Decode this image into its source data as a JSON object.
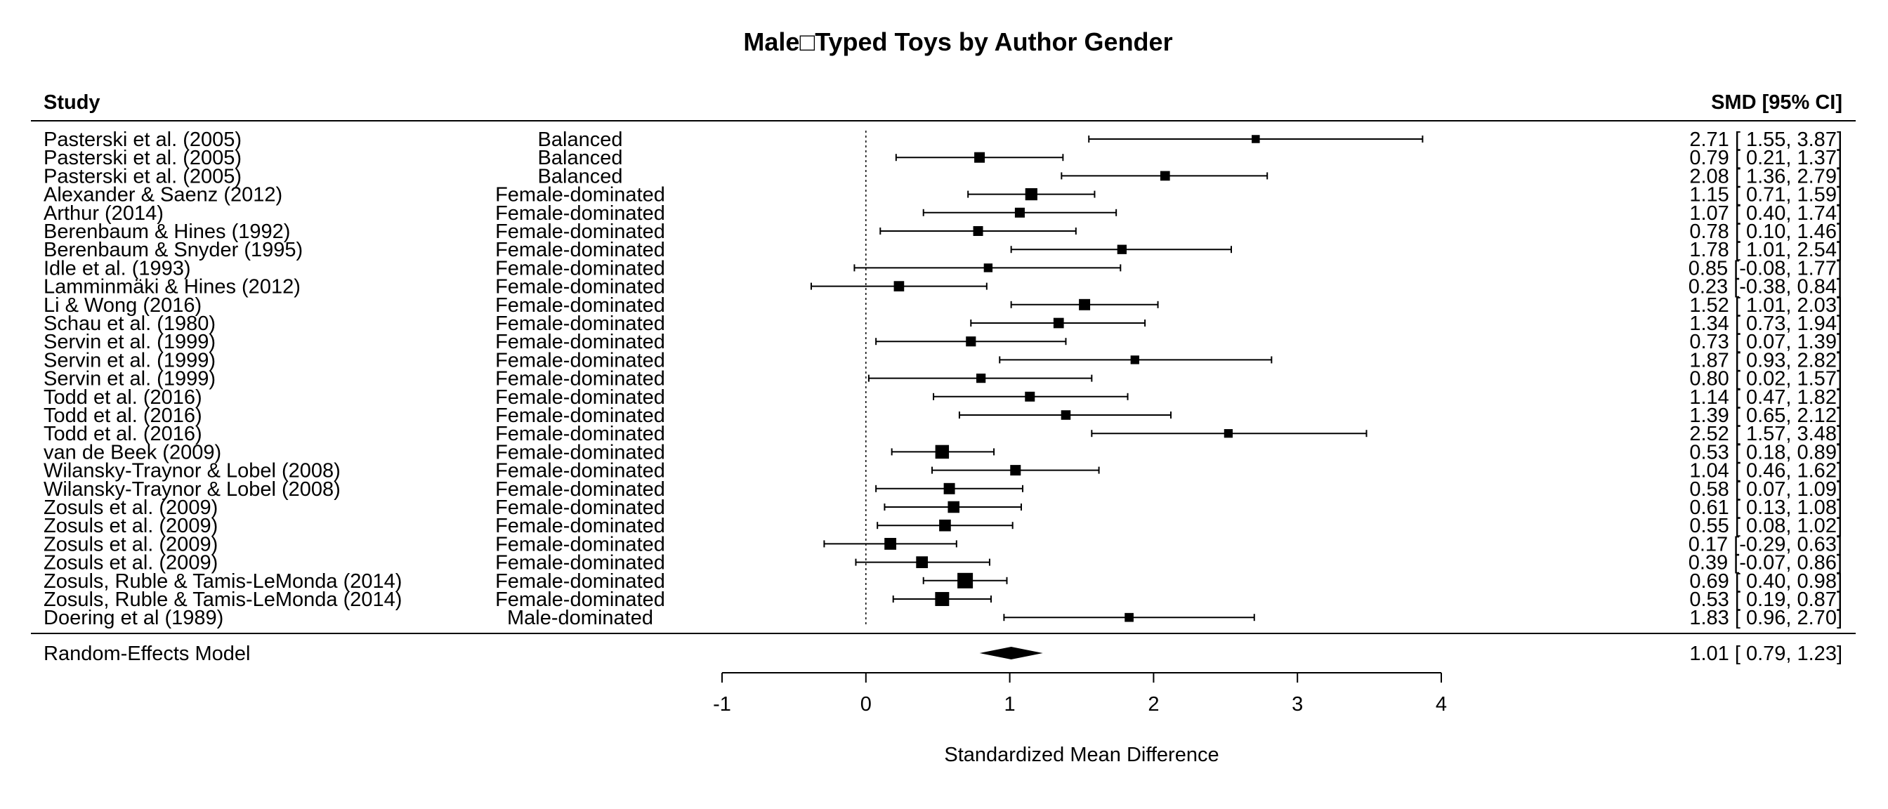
{
  "chart_data": {
    "type": "forest",
    "title": "Male□Typed Toys by Author Gender",
    "header_study": "Study",
    "header_effect": "SMD [95% CI]",
    "xlabel": "Standardized Mean Difference",
    "xlim": [
      -1,
      4
    ],
    "xticks": [
      "-1",
      "0",
      "1",
      "2",
      "3",
      "4"
    ],
    "reference_line": 0,
    "rows": [
      {
        "study": "Pasterski et al. (2005)",
        "group": "Balanced",
        "est": 2.71,
        "lo": 1.55,
        "hi": 3.87,
        "label": "2.71 [ 1.55, 3.87]"
      },
      {
        "study": "Pasterski et al. (2005)",
        "group": "Balanced",
        "est": 0.79,
        "lo": 0.21,
        "hi": 1.37,
        "label": "0.79 [ 0.21, 1.37]"
      },
      {
        "study": "Pasterski et al. (2005)",
        "group": "Balanced",
        "est": 2.08,
        "lo": 1.36,
        "hi": 2.79,
        "label": "2.08 [ 1.36, 2.79]"
      },
      {
        "study": "Alexander & Saenz (2012)",
        "group": "Female-dominated",
        "est": 1.15,
        "lo": 0.71,
        "hi": 1.59,
        "label": "1.15 [ 0.71, 1.59]"
      },
      {
        "study": "Arthur (2014)",
        "group": "Female-dominated",
        "est": 1.07,
        "lo": 0.4,
        "hi": 1.74,
        "label": "1.07 [ 0.40, 1.74]"
      },
      {
        "study": "Berenbaum & Hines (1992)",
        "group": "Female-dominated",
        "est": 0.78,
        "lo": 0.1,
        "hi": 1.46,
        "label": "0.78 [ 0.10, 1.46]"
      },
      {
        "study": "Berenbaum & Snyder (1995)",
        "group": "Female-dominated",
        "est": 1.78,
        "lo": 1.01,
        "hi": 2.54,
        "label": "1.78 [ 1.01, 2.54]"
      },
      {
        "study": "Idle et al. (1993)",
        "group": "Female-dominated",
        "est": 0.85,
        "lo": -0.08,
        "hi": 1.77,
        "label": "0.85 [-0.08, 1.77]"
      },
      {
        "study": "Lamminmäki & Hines (2012)",
        "group": "Female-dominated",
        "est": 0.23,
        "lo": -0.38,
        "hi": 0.84,
        "label": "0.23 [-0.38, 0.84]"
      },
      {
        "study": "Li & Wong (2016)",
        "group": "Female-dominated",
        "est": 1.52,
        "lo": 1.01,
        "hi": 2.03,
        "label": "1.52 [ 1.01, 2.03]"
      },
      {
        "study": "Schau et al. (1980)",
        "group": "Female-dominated",
        "est": 1.34,
        "lo": 0.73,
        "hi": 1.94,
        "label": "1.34 [ 0.73, 1.94]"
      },
      {
        "study": "Servin et al. (1999)",
        "group": "Female-dominated",
        "est": 0.73,
        "lo": 0.07,
        "hi": 1.39,
        "label": "0.73 [ 0.07, 1.39]"
      },
      {
        "study": "Servin et al. (1999)",
        "group": "Female-dominated",
        "est": 1.87,
        "lo": 0.93,
        "hi": 2.82,
        "label": "1.87 [ 0.93, 2.82]"
      },
      {
        "study": "Servin et al. (1999)",
        "group": "Female-dominated",
        "est": 0.8,
        "lo": 0.02,
        "hi": 1.57,
        "label": "0.80 [ 0.02, 1.57]"
      },
      {
        "study": "Todd et al. (2016)",
        "group": "Female-dominated",
        "est": 1.14,
        "lo": 0.47,
        "hi": 1.82,
        "label": "1.14 [ 0.47, 1.82]"
      },
      {
        "study": "Todd et al. (2016)",
        "group": "Female-dominated",
        "est": 1.39,
        "lo": 0.65,
        "hi": 2.12,
        "label": "1.39 [ 0.65, 2.12]"
      },
      {
        "study": "Todd et al. (2016)",
        "group": "Female-dominated",
        "est": 2.52,
        "lo": 1.57,
        "hi": 3.48,
        "label": "2.52 [ 1.57, 3.48]"
      },
      {
        "study": "van de Beek (2009)",
        "group": "Female-dominated",
        "est": 0.53,
        "lo": 0.18,
        "hi": 0.89,
        "label": "0.53 [ 0.18, 0.89]"
      },
      {
        "study": "Wilansky-Traynor & Lobel (2008)",
        "group": "Female-dominated",
        "est": 1.04,
        "lo": 0.46,
        "hi": 1.62,
        "label": "1.04 [ 0.46, 1.62]"
      },
      {
        "study": "Wilansky-Traynor & Lobel (2008)",
        "group": "Female-dominated",
        "est": 0.58,
        "lo": 0.07,
        "hi": 1.09,
        "label": "0.58 [ 0.07, 1.09]"
      },
      {
        "study": "Zosuls et al. (2009)",
        "group": "Female-dominated",
        "est": 0.61,
        "lo": 0.13,
        "hi": 1.08,
        "label": "0.61 [ 0.13, 1.08]"
      },
      {
        "study": "Zosuls et al. (2009)",
        "group": "Female-dominated",
        "est": 0.55,
        "lo": 0.08,
        "hi": 1.02,
        "label": "0.55 [ 0.08, 1.02]"
      },
      {
        "study": "Zosuls et al. (2009)",
        "group": "Female-dominated",
        "est": 0.17,
        "lo": -0.29,
        "hi": 0.63,
        "label": "0.17 [-0.29, 0.63]"
      },
      {
        "study": "Zosuls et al. (2009)",
        "group": "Female-dominated",
        "est": 0.39,
        "lo": -0.07,
        "hi": 0.86,
        "label": "0.39 [-0.07, 0.86]"
      },
      {
        "study": "Zosuls, Ruble & Tamis-LeMonda (2014)",
        "group": "Female-dominated",
        "est": 0.69,
        "lo": 0.4,
        "hi": 0.98,
        "label": "0.69 [ 0.40, 0.98]"
      },
      {
        "study": "Zosuls, Ruble & Tamis-LeMonda (2014)",
        "group": "Female-dominated",
        "est": 0.53,
        "lo": 0.19,
        "hi": 0.87,
        "label": "0.53 [ 0.19, 0.87]"
      },
      {
        "study": "Doering et al (1989)",
        "group": "Male-dominated",
        "est": 1.83,
        "lo": 0.96,
        "hi": 2.7,
        "label": "1.83 [ 0.96, 2.70]"
      }
    ],
    "summary": {
      "label": "Random-Effects Model",
      "est": 1.01,
      "lo": 0.79,
      "hi": 1.23,
      "text": "1.01 [ 0.79, 1.23]"
    }
  }
}
